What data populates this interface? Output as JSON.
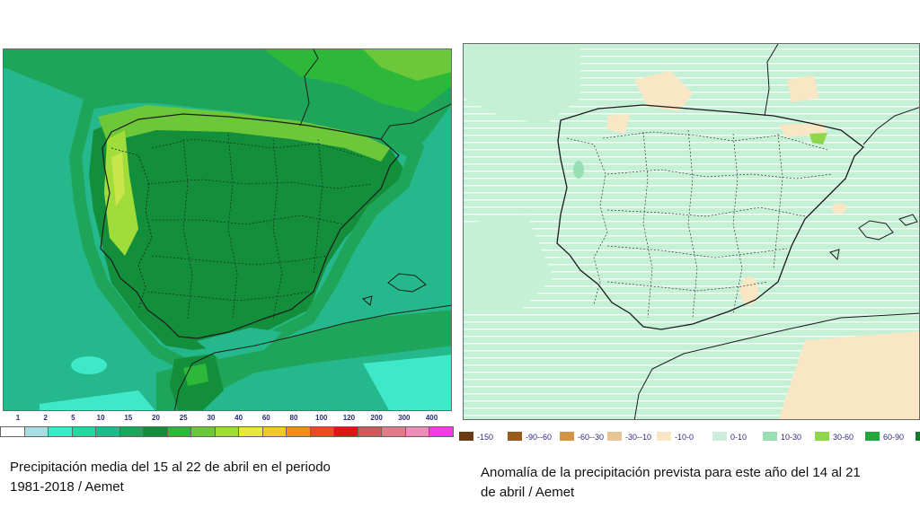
{
  "left_panel": {
    "scale_labels": [
      "1",
      "2",
      "5",
      "10",
      "15",
      "20",
      "25",
      "30",
      "40",
      "60",
      "80",
      "100",
      "120",
      "200",
      "300",
      "400"
    ],
    "scale_colors": [
      "#ffffff",
      "#a8dde3",
      "#3fe8c8",
      "#28d4a0",
      "#25b88c",
      "#1ea55a",
      "#138e3a",
      "#2db83a",
      "#6cc838",
      "#a0dc3a",
      "#e8e83a",
      "#f0c828",
      "#f08c22",
      "#e84c22",
      "#e01616",
      "#cc5a5a",
      "#e07b88",
      "#f08cb8",
      "#f03ce8"
    ],
    "caption_line1": "Precipitación media del 15 al 22 de abril en el periodo",
    "caption_line2": "1981-2018 / Aemet"
  },
  "right_panel": {
    "legend": [
      {
        "label": "-150",
        "color": "#6a3a14"
      },
      {
        "label": "-90--60",
        "color": "#9a5a1e"
      },
      {
        "label": "-60--30",
        "color": "#d49448"
      },
      {
        "label": "-30--10",
        "color": "#e6c596"
      },
      {
        "label": "-10-0",
        "color": "#f8e6c4"
      },
      {
        "label": "0-10",
        "color": "#cdeedc"
      },
      {
        "label": "10-30",
        "color": "#98e0b4"
      },
      {
        "label": "30-60",
        "color": "#8fd64a"
      },
      {
        "label": "60-90",
        "color": "#22a63e"
      },
      {
        "label": "",
        "color": "#157a2c"
      }
    ],
    "caption_line1": "Anomalía de la precipitación prevista para este año del 14 al 21",
    "caption_line2": "de abril / Aemet"
  }
}
